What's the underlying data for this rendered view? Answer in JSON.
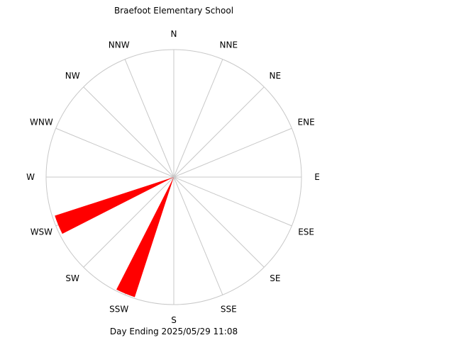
{
  "chart_data": {
    "type": "wind-rose",
    "title": "Braefoot Elementary School",
    "footer": "Day Ending 2025/05/29 11:08",
    "directions": [
      "N",
      "NNE",
      "NE",
      "ENE",
      "E",
      "ESE",
      "SE",
      "SSE",
      "S",
      "SSW",
      "SW",
      "WSW",
      "W",
      "WNW",
      "NW",
      "NNW"
    ],
    "values": [
      0,
      0,
      0,
      0,
      0,
      0,
      0,
      0,
      0,
      0.99,
      0,
      0.98,
      0,
      0,
      0,
      0
    ],
    "rmax": 1,
    "grid": true
  },
  "colors": {
    "petal": "#ff0000",
    "grid": "#c8c8c8",
    "text": "#000000",
    "background": "#ffffff"
  }
}
